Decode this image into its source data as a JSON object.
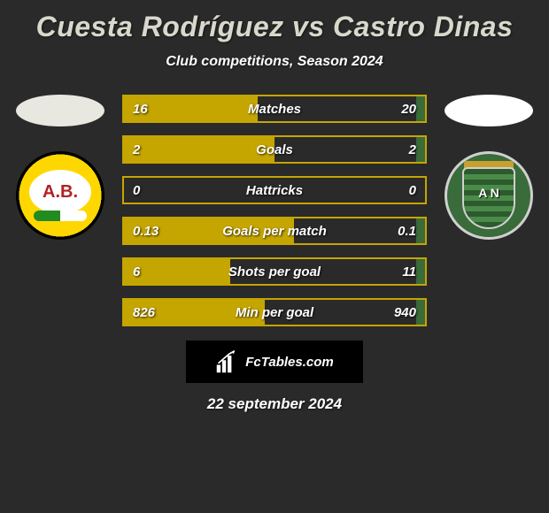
{
  "title": "Cuesta Rodríguez vs Castro Dinas",
  "subtitle": "Club competitions, Season 2024",
  "date": "22 september 2024",
  "footer": {
    "brand": "FcTables.com"
  },
  "player_left": {
    "oval_color": "#e8e8e0",
    "badge_text": "A.B.",
    "badge_bg": "#ffd700",
    "accent": "#c5a500"
  },
  "player_right": {
    "oval_color": "#ffffff",
    "badge_text": "A N",
    "badge_bg": "#3a6b3a",
    "accent": "#3a6b3a"
  },
  "stats": [
    {
      "label": "Matches",
      "left_val": "16",
      "right_val": "20",
      "left_pct": 44.4,
      "right_pct": 3.0
    },
    {
      "label": "Goals",
      "left_val": "2",
      "right_val": "2",
      "left_pct": 50.0,
      "right_pct": 3.0
    },
    {
      "label": "Hattricks",
      "left_val": "0",
      "right_val": "0",
      "left_pct": 0.0,
      "right_pct": 0.0
    },
    {
      "label": "Goals per match",
      "left_val": "0.13",
      "right_val": "0.1",
      "left_pct": 56.5,
      "right_pct": 3.0
    },
    {
      "label": "Shots per goal",
      "left_val": "6",
      "right_val": "11",
      "left_pct": 35.3,
      "right_pct": 3.0
    },
    {
      "label": "Min per goal",
      "left_val": "826",
      "right_val": "940",
      "left_pct": 46.8,
      "right_pct": 3.0
    }
  ],
  "colors": {
    "bar_border_left": "#c5a500",
    "bar_fill_left": "#c5a500",
    "bar_border_right": "#3a6b3a",
    "bar_fill_right": "#3a6b3a",
    "background": "#2a2a2a",
    "title_color": "#d8d8cc",
    "text_color": "#ffffff"
  }
}
